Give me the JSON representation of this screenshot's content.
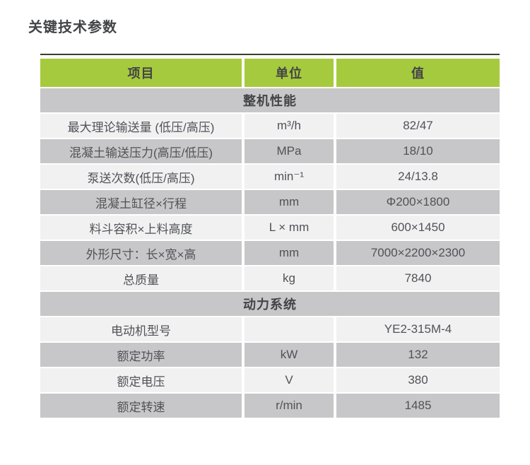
{
  "page": {
    "title": "关键技术参数"
  },
  "colors": {
    "header_green": "#a6ca3d",
    "section_gray": "#c7c7c9",
    "row_light": "#f1f1f2",
    "row_gray": "#c7c7c9",
    "text": "#515257",
    "text_strong": "#434447",
    "top_rule": "#394026"
  },
  "table": {
    "columns": [
      {
        "label": "项目"
      },
      {
        "label": "单位"
      },
      {
        "label": "值"
      }
    ],
    "sections": [
      {
        "title": "整机性能",
        "rows": [
          {
            "item": "最大理论输送量 (低压/高压)",
            "unit": "m³/h",
            "value": "82/47"
          },
          {
            "item": "混凝土输送压力(高压/低压)",
            "unit": "MPa",
            "value": "18/10"
          },
          {
            "item": "泵送次数(低压/高压)",
            "unit": "min⁻¹",
            "value": "24/13.8"
          },
          {
            "item": "混凝土缸径×行程",
            "unit": "mm",
            "value": "Φ200×1800"
          },
          {
            "item": "料斗容积×上料高度",
            "unit": "L × mm",
            "value": "600×1450"
          },
          {
            "item": "外形尺寸：长×宽×高",
            "unit": "mm",
            "value": "7000×2200×2300"
          },
          {
            "item": "总质量",
            "unit": "kg",
            "value": "7840"
          }
        ]
      },
      {
        "title": "动力系统",
        "rows": [
          {
            "item": "电动机型号",
            "unit": "",
            "value": "YE2-315M-4"
          },
          {
            "item": "额定功率",
            "unit": "kW",
            "value": "132"
          },
          {
            "item": "额定电压",
            "unit": "V",
            "value": "380"
          },
          {
            "item": "额定转速",
            "unit": "r/min",
            "value": "1485"
          }
        ]
      }
    ]
  }
}
